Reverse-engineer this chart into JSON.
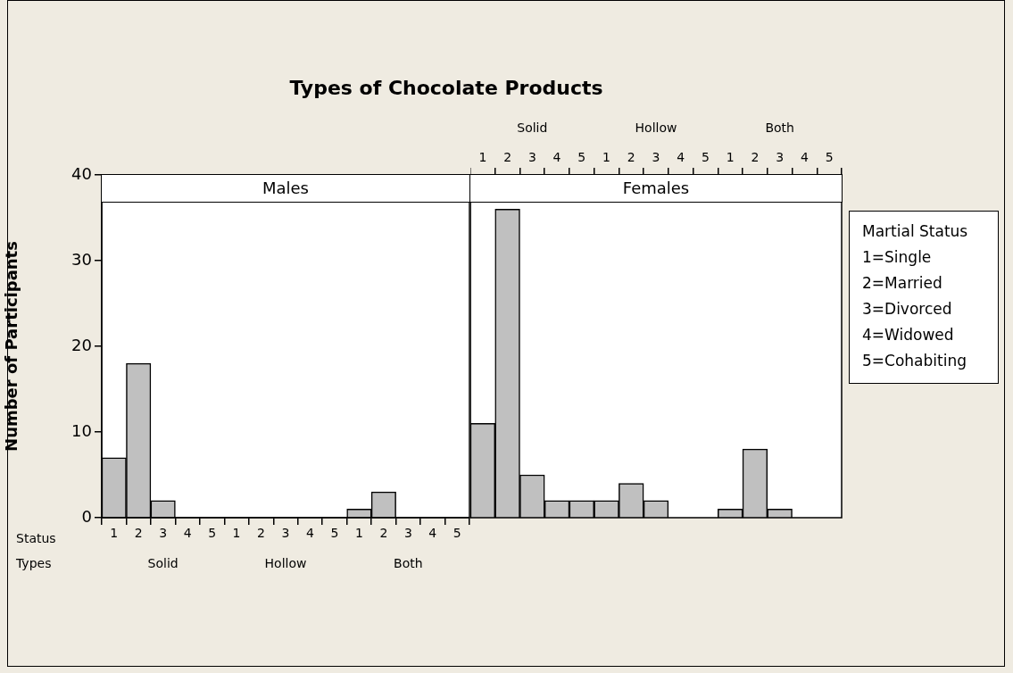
{
  "chart_data": [
    {
      "type": "bar",
      "title": "Types of Chocolate Products",
      "subtitle": "Males",
      "ylabel": "Number of Participants",
      "categories": [
        "1",
        "2",
        "3",
        "4",
        "5",
        "1",
        "2",
        "3",
        "4",
        "5",
        "1",
        "2",
        "3",
        "4",
        "5"
      ],
      "values": [
        7,
        18,
        2,
        0,
        0,
        0,
        0,
        0,
        0,
        0,
        1,
        3,
        0,
        0,
        0
      ],
      "color": "#c0c0c0",
      "ylim": [
        0,
        40
      ],
      "yticks": [
        0,
        10,
        20,
        30,
        40
      ],
      "grid": false,
      "legend": false,
      "annotations": [
        "Status",
        "Types",
        "Solid",
        "Hollow",
        "Both"
      ]
    },
    {
      "type": "bar",
      "title": "Females",
      "categories": [
        "1",
        "2",
        "3",
        "4",
        "5",
        "1",
        "2",
        "3",
        "4",
        "5",
        "1",
        "2",
        "3",
        "4",
        "5"
      ],
      "values": [
        11,
        36,
        5,
        2,
        2,
        2,
        4,
        2,
        0,
        0,
        1,
        8,
        1,
        0,
        0
      ],
      "color": "#c0c0c0",
      "ylim": [
        0,
        40
      ],
      "yticks": [
        0,
        10,
        20,
        30,
        40
      ],
      "grid": false,
      "legend": false,
      "tick_labels": "x",
      "annotations": [
        "Solid",
        "Hollow",
        "Both"
      ]
    },
    {
      "type": "other",
      "title": "Martial Status",
      "annotations": [
        "1=Single",
        "2=Married",
        "3=Divorced",
        "4=Widowed",
        "5=Cohabiting"
      ]
    }
  ]
}
